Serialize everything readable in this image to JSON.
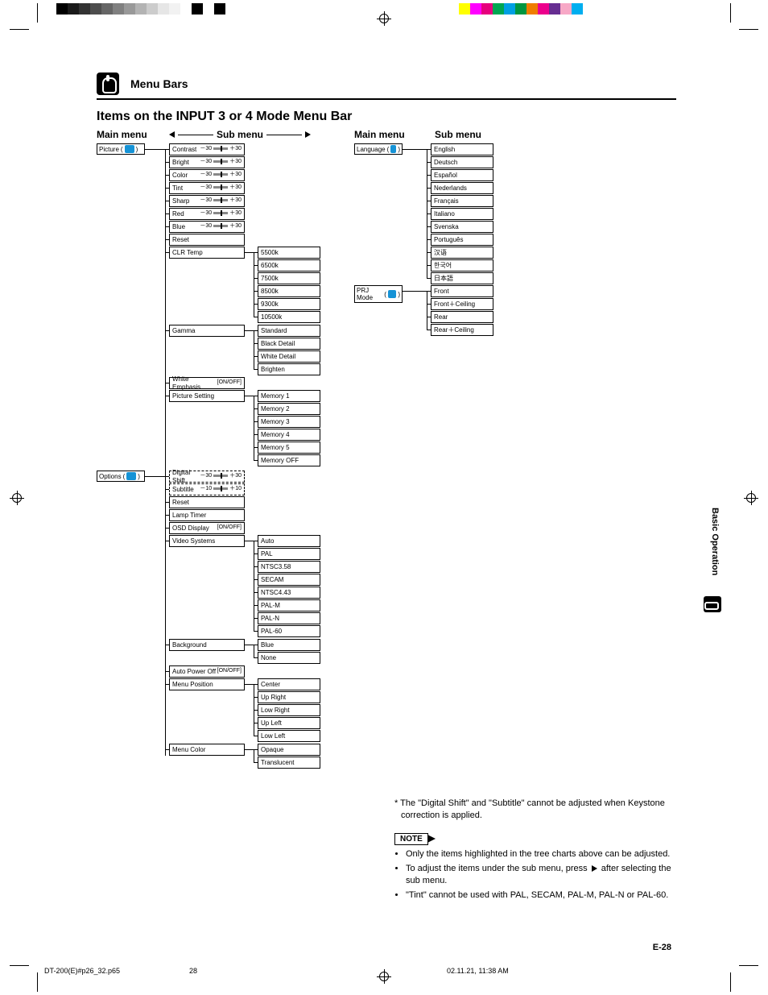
{
  "printermarks": {
    "greyscale": [
      "#000000",
      "#1a1a1a",
      "#333333",
      "#4d4d4d",
      "#666666",
      "#808080",
      "#999999",
      "#b3b3b3",
      "#cccccc",
      "#e6e6e6",
      "#f2f2f2",
      "#ffffff",
      "#000000",
      "#ffffff",
      "#000000"
    ],
    "colors": [
      "#ffff00",
      "#ff00ff",
      "#e6007e",
      "#00a651",
      "#009fe3",
      "#009640",
      "#ef7d00",
      "#ec008c",
      "#662d91",
      "#f7a8c6",
      "#00aeef"
    ]
  },
  "section_header": "Menu Bars",
  "page_title": "Items on the INPUT 3 or 4 Mode Menu Bar",
  "col_labels": {
    "main": "Main menu",
    "sub": "Sub menu"
  },
  "main_boxes": {
    "picture": {
      "label": "Picture",
      "icon_bg": "#1693d6"
    },
    "options": {
      "label": "Options",
      "icon_bg": "#1693d6"
    },
    "language": {
      "label": "Language",
      "icon_bg": "#1693d6"
    },
    "prjmode": {
      "label": "PRJ Mode",
      "icon_bg": "#1693d6"
    }
  },
  "picture_sub": [
    {
      "label": "Contrast",
      "lo": "－30",
      "hi": "＋30"
    },
    {
      "label": "Bright",
      "lo": "－30",
      "hi": "＋30"
    },
    {
      "label": "Color",
      "lo": "－30",
      "hi": "＋30"
    },
    {
      "label": "Tint",
      "lo": "－30",
      "hi": "＋30"
    },
    {
      "label": "Sharp",
      "lo": "－30",
      "hi": "＋30"
    },
    {
      "label": "Red",
      "lo": "－30",
      "hi": "＋30"
    },
    {
      "label": "Blue",
      "lo": "－30",
      "hi": "＋30"
    },
    {
      "label": "Reset"
    },
    {
      "label": "CLR Temp"
    },
    {
      "label": "Gamma"
    },
    {
      "label": "White Emphasis",
      "extra": "[ON/OFF]"
    },
    {
      "label": "Picture Setting"
    }
  ],
  "clrtemp_sub": [
    "5500k",
    "6500k",
    "7500k",
    "8500k",
    "9300k",
    "10500k"
  ],
  "gamma_sub": [
    "Standard",
    "Black Detail",
    "White Detail",
    "Brighten"
  ],
  "picset_sub": [
    "Memory 1",
    "Memory 2",
    "Memory 3",
    "Memory 4",
    "Memory 5",
    "Memory OFF"
  ],
  "options_sub": [
    {
      "label": "Digital Shift",
      "lo": "－30",
      "hi": "＋30",
      "dashed": true
    },
    {
      "label": "Subtitle",
      "lo": "－10",
      "hi": "＋10",
      "dashed": true
    },
    {
      "label": "Reset"
    },
    {
      "label": "Lamp Timer"
    },
    {
      "label": "OSD Display",
      "extra": "[ON/OFF]"
    },
    {
      "label": "Video Systems"
    },
    {
      "label": "Background"
    },
    {
      "label": "Auto Power Off",
      "extra": "[ON/OFF]"
    },
    {
      "label": "Menu Position"
    },
    {
      "label": "Menu Color"
    }
  ],
  "videosys_sub": [
    "Auto",
    "PAL",
    "NTSC3.58",
    "SECAM",
    "NTSC4.43",
    "PAL-M",
    "PAL-N",
    "PAL-60"
  ],
  "background_sub": [
    "Blue",
    "None"
  ],
  "menupos_sub": [
    "Center",
    "Up Right",
    "Low Right",
    "Up Left",
    "Low Left"
  ],
  "menucolor_sub": [
    "Opaque",
    "Translucent"
  ],
  "language_sub": [
    "English",
    "Deutsch",
    "Español",
    "Nederlands",
    "Français",
    "Italiano",
    "Svenska",
    "Português",
    "汉语",
    "한국어",
    "日本語"
  ],
  "prjmode_sub": [
    "Front",
    "Front＋Ceiling",
    "Rear",
    "Rear＋Ceiling"
  ],
  "side_tab": "Basic Operation",
  "footnote_star": "* The \"Digital Shift\" and \"Subtitle\" cannot be adjusted when Keystone correction is applied.",
  "note_label": "NOTE",
  "notes": [
    "Only the items highlighted in the tree charts above can be adjusted.",
    "To adjust the items under the sub menu, press ▶ after selecting the sub menu.",
    "\"Tint\" cannot be used with PAL, SECAM, PAL-M, PAL-N or PAL-60."
  ],
  "page_num": "E-28",
  "footer": {
    "file": "DT-200(E)#p26_32.p65",
    "page": "28",
    "timestamp": "02.11.21, 11:38 AM"
  }
}
